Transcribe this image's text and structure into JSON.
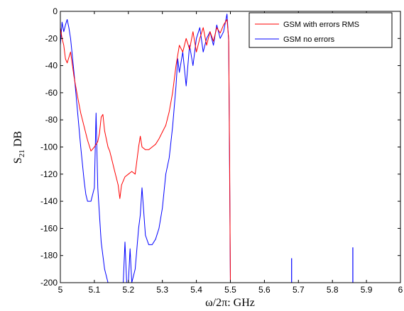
{
  "chart_data": {
    "type": "line",
    "xlabel": "ω/2π: GHz",
    "ylabel": "S21 DB",
    "ylabel_main": "S",
    "ylabel_sub": "21",
    "ylabel_rest": " DB",
    "xlim": [
      5,
      6
    ],
    "ylim": [
      -200,
      0
    ],
    "xticks": [
      "5",
      "5.1",
      "5.2",
      "5.3",
      "5.4",
      "5.5",
      "5.6",
      "5.7",
      "5.8",
      "5.9",
      "6"
    ],
    "yticks": [
      "0",
      "-20",
      "-40",
      "-60",
      "-80",
      "-100",
      "-120",
      "-140",
      "-160",
      "-180",
      "-200"
    ],
    "grid": false,
    "legend_position": "top-right",
    "colors": {
      "GSM with errors RMS": "#ff0000",
      "GSM no errors": "#0000ff"
    },
    "series": [
      {
        "name": "GSM with errors RMS",
        "color": "#ff0000",
        "x": [
          5.0,
          5.005,
          5.01,
          5.015,
          5.02,
          5.03,
          5.04,
          5.05,
          5.06,
          5.07,
          5.08,
          5.09,
          5.1,
          5.11,
          5.115,
          5.12,
          5.125,
          5.13,
          5.14,
          5.145,
          5.15,
          5.16,
          5.17,
          5.175,
          5.18,
          5.19,
          5.2,
          5.21,
          5.22,
          5.23,
          5.235,
          5.24,
          5.25,
          5.26,
          5.27,
          5.28,
          5.29,
          5.3,
          5.31,
          5.32,
          5.33,
          5.34,
          5.35,
          5.36,
          5.37,
          5.38,
          5.39,
          5.4,
          5.41,
          5.42,
          5.43,
          5.44,
          5.45,
          5.46,
          5.47,
          5.48,
          5.49,
          5.495,
          5.498,
          5.5
        ],
        "y": [
          -12,
          -20,
          -25,
          -35,
          -38,
          -30,
          -48,
          -62,
          -75,
          -85,
          -95,
          -103,
          -100,
          -96,
          -90,
          -78,
          -76,
          -88,
          -100,
          -103,
          -108,
          -118,
          -128,
          -138,
          -128,
          -122,
          -120,
          -118,
          -120,
          -100,
          -92,
          -100,
          -102,
          -102,
          -100,
          -98,
          -94,
          -89,
          -84,
          -74,
          -60,
          -40,
          -25,
          -30,
          -20,
          -28,
          -15,
          -30,
          -20,
          -12,
          -25,
          -15,
          -22,
          -12,
          -16,
          -10,
          -6,
          -20,
          -116,
          -200
        ]
      },
      {
        "name": "GSM no errors",
        "color": "#0000ff",
        "x": [
          5.0,
          5.005,
          5.01,
          5.015,
          5.02,
          5.025,
          5.03,
          5.04,
          5.05,
          5.06,
          5.07,
          5.075,
          5.08,
          5.09,
          5.1,
          5.105,
          5.11,
          5.115,
          5.12,
          5.13,
          5.14,
          5.15,
          5.16,
          5.17,
          5.18,
          5.185,
          5.19,
          5.195,
          5.2,
          5.205,
          5.21,
          5.22,
          5.23,
          5.235,
          5.24,
          5.25,
          5.26,
          5.27,
          5.28,
          5.29,
          5.3,
          5.31,
          5.32,
          5.33,
          5.34,
          5.345,
          5.35,
          5.36,
          5.37,
          5.38,
          5.39,
          5.4,
          5.41,
          5.42,
          5.43,
          5.44,
          5.45,
          5.46,
          5.47,
          5.48,
          5.49,
          5.495,
          5.5
        ],
        "y": [
          -25,
          -8,
          -15,
          -10,
          -6,
          -12,
          -20,
          -45,
          -72,
          -100,
          -125,
          -135,
          -140,
          -140,
          -130,
          -75,
          -130,
          -150,
          -170,
          -190,
          -200,
          -200,
          -200,
          -200,
          -200,
          -200,
          -170,
          -200,
          -200,
          -175,
          -200,
          -190,
          -160,
          -150,
          -130,
          -165,
          -172,
          -172,
          -168,
          -160,
          -145,
          -120,
          -108,
          -85,
          -55,
          -35,
          -45,
          -30,
          -55,
          -25,
          -40,
          -20,
          -12,
          -30,
          -20,
          -15,
          -25,
          -10,
          -20,
          -15,
          -2,
          -22,
          -200
        ]
      }
    ],
    "spikes": [
      {
        "series": "GSM no errors",
        "x": 5.68,
        "y": -182
      },
      {
        "series": "GSM no errors",
        "x": 5.86,
        "y": -174
      }
    ]
  }
}
